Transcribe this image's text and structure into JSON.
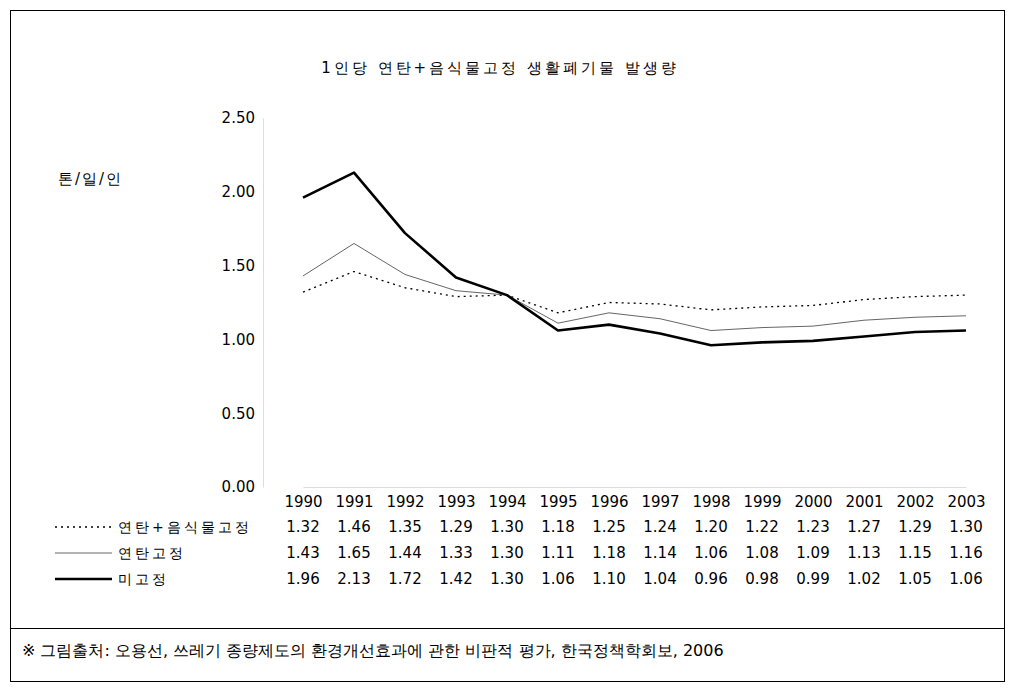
{
  "chart_data": {
    "type": "line",
    "title": "1인당 연탄+음식물고정 생활폐기물 발생량",
    "y_label": "톤/일/인",
    "source": "※ 그림출처: 오용선, 쓰레기 종량제도의 환경개선효과에 관한 비판적 평가, 한국정책학회보, 2006",
    "categories": [
      "1990",
      "1991",
      "1992",
      "1993",
      "1994",
      "1995",
      "1996",
      "1997",
      "1998",
      "1999",
      "2000",
      "2001",
      "2002",
      "2003"
    ],
    "ylim": [
      0,
      2.5
    ],
    "yticks": [
      {
        "value": 0,
        "label": "0.00"
      },
      {
        "value": 0.5,
        "label": "0.50"
      },
      {
        "value": 1,
        "label": "1.00"
      },
      {
        "value": 1.5,
        "label": "1.50"
      },
      {
        "value": 2,
        "label": "2.00"
      },
      {
        "value": 2.5,
        "label": "2.50"
      }
    ],
    "grid": false,
    "series": [
      {
        "name": "연탄+음식물고정",
        "color": "#000000",
        "line_style": "dotted",
        "values": [
          1.32,
          1.46,
          1.35,
          1.29,
          1.3,
          1.18,
          1.25,
          1.24,
          1.2,
          1.22,
          1.23,
          1.27,
          1.29,
          1.3
        ],
        "value_labels": [
          "1.32",
          "1.46",
          "1.35",
          "1.29",
          "1.30",
          "1.18",
          "1.25",
          "1.24",
          "1.20",
          "1.22",
          "1.23",
          "1.27",
          "1.29",
          "1.30"
        ]
      },
      {
        "name": "연탄고정",
        "color": "#666666",
        "line_style": "thin",
        "values": [
          1.43,
          1.65,
          1.44,
          1.33,
          1.3,
          1.11,
          1.18,
          1.14,
          1.06,
          1.08,
          1.09,
          1.13,
          1.15,
          1.16
        ],
        "value_labels": [
          "1.43",
          "1.65",
          "1.44",
          "1.33",
          "1.30",
          "1.11",
          "1.18",
          "1.14",
          "1.06",
          "1.08",
          "1.09",
          "1.13",
          "1.15",
          "1.16"
        ]
      },
      {
        "name": "미고정",
        "color": "#000000",
        "line_style": "thick",
        "values": [
          1.96,
          2.13,
          1.72,
          1.42,
          1.3,
          1.06,
          1.1,
          1.04,
          0.96,
          0.98,
          0.99,
          1.02,
          1.05,
          1.06
        ],
        "value_labels": [
          "1.96",
          "2.13",
          "1.72",
          "1.42",
          "1.30",
          "1.06",
          "1.10",
          "1.04",
          "0.96",
          "0.98",
          "0.99",
          "1.02",
          "1.05",
          "1.06"
        ]
      }
    ]
  }
}
